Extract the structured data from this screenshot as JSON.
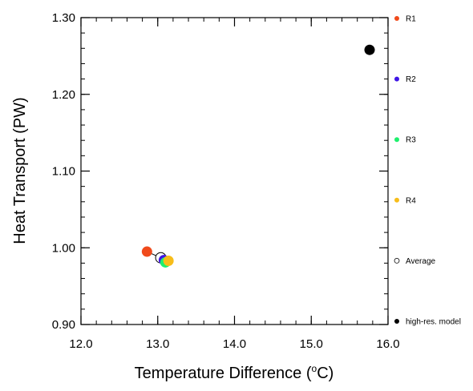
{
  "chart_data": {
    "type": "scatter",
    "xlabel_main": "Temperature Difference (",
    "xlabel_sup": "o",
    "xlabel_end": "C)",
    "ylabel": "Heat Transport (PW)",
    "xlim": [
      12.0,
      16.0
    ],
    "ylim": [
      0.9,
      1.3
    ],
    "x_ticks": [
      {
        "value": 12.0,
        "label": "12.0"
      },
      {
        "value": 13.0,
        "label": "13.0"
      },
      {
        "value": 14.0,
        "label": "14.0"
      },
      {
        "value": 15.0,
        "label": "15.0"
      },
      {
        "value": 16.0,
        "label": "16.0"
      }
    ],
    "y_ticks": [
      {
        "value": 0.9,
        "label": "0.90"
      },
      {
        "value": 1.0,
        "label": "1.00"
      },
      {
        "value": 1.1,
        "label": "1.10"
      },
      {
        "value": 1.2,
        "label": "1.20"
      },
      {
        "value": 1.3,
        "label": "1.30"
      }
    ],
    "grid": false,
    "legend_position": "right",
    "series": [
      {
        "name": "R1",
        "color": "#f04a1b",
        "x": 12.86,
        "y": 0.995
      },
      {
        "name": "R2",
        "color": "#3f16e6",
        "x": 13.08,
        "y": 0.984
      },
      {
        "name": "R3",
        "color": "#1ef06d",
        "x": 13.1,
        "y": 0.981
      },
      {
        "name": "R4",
        "color": "#f7bd1a",
        "x": 13.14,
        "y": 0.983
      },
      {
        "name": "Average",
        "color": "#ffffff",
        "stroke": "#000000",
        "x": 13.04,
        "y": 0.987
      },
      {
        "name": "high-res. model",
        "color": "#000000",
        "x": 15.76,
        "y": 1.258
      }
    ]
  }
}
